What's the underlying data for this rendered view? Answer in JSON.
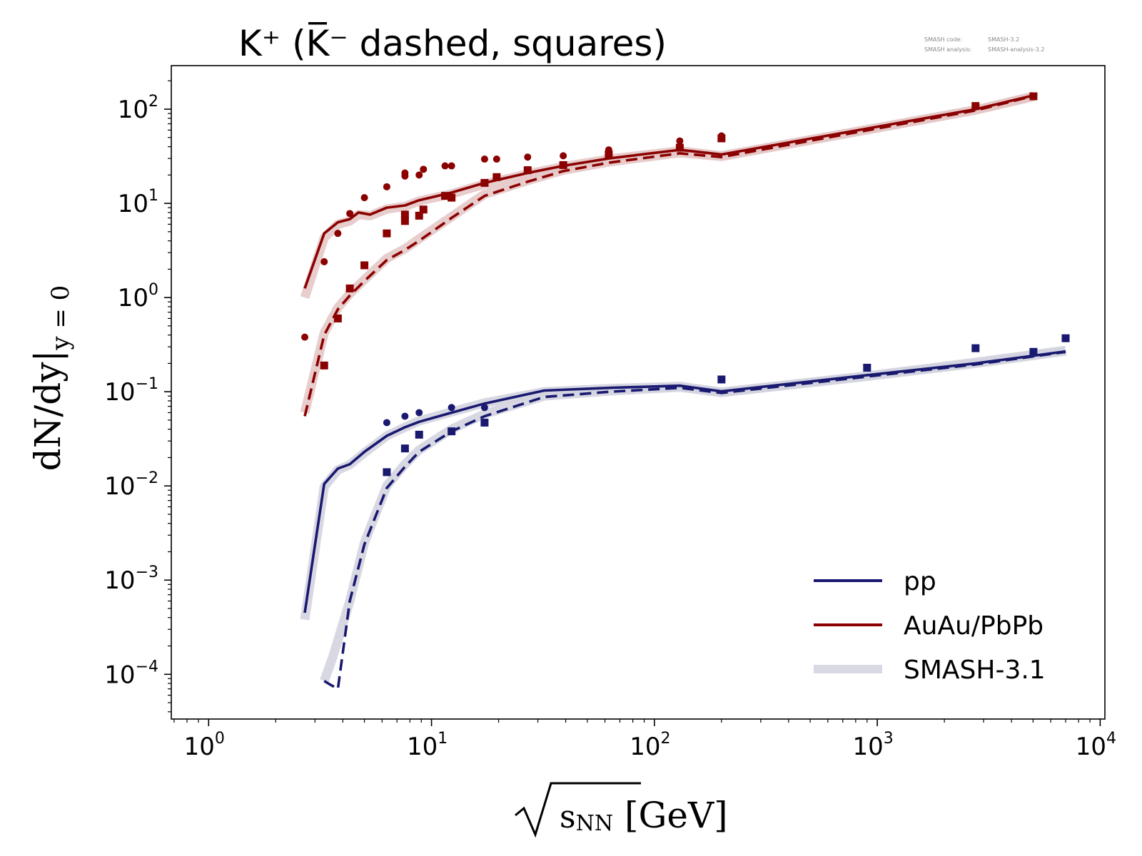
{
  "chart_data": {
    "type": "line",
    "title": "K⁺ (K̅⁻ dashed, squares)",
    "xlabel": "√sNN [GeV]",
    "ylabel": "dN/dy|y=0",
    "xscale": "log",
    "yscale": "log",
    "xlim": [
      0.68,
      10500
    ],
    "ylim": [
      3.35e-05,
      290
    ],
    "grid": false,
    "legend_position": "lower-right",
    "x_ticks": [
      {
        "exp": 0,
        "value": 1
      },
      {
        "exp": 1,
        "value": 10
      },
      {
        "exp": 2,
        "value": 100
      },
      {
        "exp": 3,
        "value": 1000
      },
      {
        "exp": 4,
        "value": 10000
      }
    ],
    "y_ticks": [
      {
        "exp": -4,
        "value": 0.0001
      },
      {
        "exp": -3,
        "value": 0.001
      },
      {
        "exp": -2,
        "value": 0.01
      },
      {
        "exp": -1,
        "value": 0.1
      },
      {
        "exp": 0,
        "value": 1
      },
      {
        "exp": 1,
        "value": 10
      },
      {
        "exp": 2,
        "value": 100
      }
    ],
    "version_note": {
      "line1_label": "SMASH code:",
      "line1_value": "SMASH-3.2",
      "line2_label": "SMASH analysis:",
      "line2_value": "SMASH-analysis-3.2"
    },
    "legend": [
      {
        "label": "pp",
        "color": "#191970",
        "style": "solid"
      },
      {
        "label": "AuAu/PbPb",
        "color": "#8b0000",
        "style": "solid"
      },
      {
        "label": "SMASH-3.1",
        "color": "#d9d9e3",
        "style": "band"
      }
    ],
    "series": [
      {
        "key": "pp_kplus_32",
        "color": "#191970",
        "style": "solid",
        "x": [
          2.7,
          3.3,
          3.8,
          4.3,
          5.0,
          6.3,
          7.6,
          8.8,
          12.3,
          17.3,
          32,
          63,
          130,
          200,
          900,
          2760,
          7000
        ],
        "y": [
          0.00045,
          0.0105,
          0.0153,
          0.017,
          0.023,
          0.034,
          0.042,
          0.048,
          0.06,
          0.075,
          0.103,
          0.11,
          0.116,
          0.101,
          0.15,
          0.2,
          0.268
        ]
      },
      {
        "key": "pp_kminus_32",
        "color": "#191970",
        "style": "dashed",
        "x": [
          3.3,
          3.5,
          3.8,
          4.3,
          5.0,
          6.3,
          7.6,
          8.8,
          12.3,
          17.3,
          32,
          63,
          130,
          200,
          900,
          2760,
          7000
        ],
        "y": [
          8.5e-05,
          7.8e-05,
          7e-05,
          0.0006,
          0.0024,
          0.0095,
          0.016,
          0.023,
          0.038,
          0.055,
          0.088,
          0.1,
          0.11,
          0.097,
          0.145,
          0.195,
          0.265
        ]
      },
      {
        "key": "auau_kplus_32",
        "color": "#8b0000",
        "style": "solid",
        "x": [
          2.7,
          3.3,
          3.8,
          4.3,
          4.7,
          5.3,
          6.3,
          7.6,
          8.8,
          12.3,
          17.3,
          27,
          39,
          62.4,
          130,
          200,
          2760,
          5020
        ],
        "y": [
          1.25,
          4.8,
          6.3,
          6.8,
          8.0,
          7.6,
          9.0,
          9.5,
          10.8,
          13.0,
          16.5,
          21.0,
          25.0,
          30.0,
          37.0,
          33.0,
          100.0,
          140.0
        ]
      },
      {
        "key": "auau_kminus_32",
        "color": "#8b0000",
        "style": "dashed",
        "x": [
          2.7,
          3.3,
          3.8,
          4.3,
          5.0,
          6.3,
          7.6,
          8.8,
          12.3,
          17.3,
          27,
          39,
          62.4,
          130,
          200,
          2760,
          5020
        ],
        "y": [
          0.055,
          0.4,
          0.75,
          1.05,
          1.5,
          2.5,
          3.2,
          4.0,
          7.0,
          12.0,
          17.0,
          22.0,
          27.0,
          34.0,
          31.0,
          97.0,
          138.0
        ]
      }
    ],
    "bands_smash31": [
      {
        "key": "band_pp_kplus",
        "color": "#d4d4e0",
        "x": [
          2.7,
          3.3,
          3.8,
          4.3,
          5.0,
          6.3,
          7.6,
          8.8,
          12.3,
          17.3,
          32,
          63,
          130,
          200,
          900,
          2760,
          7000
        ],
        "y": [
          0.00038,
          0.0098,
          0.0148,
          0.0168,
          0.0225,
          0.034,
          0.042,
          0.049,
          0.061,
          0.076,
          0.1,
          0.108,
          0.114,
          0.099,
          0.147,
          0.205,
          0.275
        ]
      },
      {
        "key": "band_pp_kminus",
        "color": "#d4d4e0",
        "x": [
          3.3,
          3.6,
          3.9,
          4.3,
          5.0,
          6.3,
          7.6,
          8.8,
          12.3,
          17.3,
          32,
          63,
          130,
          200,
          900,
          2760,
          7000
        ],
        "y": [
          8.5e-05,
          0.00015,
          0.00028,
          0.0006,
          0.0025,
          0.01,
          0.017,
          0.024,
          0.04,
          0.058,
          0.09,
          0.102,
          0.112,
          0.098,
          0.146,
          0.2,
          0.27
        ]
      },
      {
        "key": "band_auau_kplus",
        "color": "#e6c8c8",
        "x": [
          2.7,
          3.3,
          3.8,
          4.3,
          4.7,
          5.3,
          6.3,
          7.6,
          8.8,
          12.3,
          17.3,
          27,
          39,
          62.4,
          130,
          200,
          2760,
          5020
        ],
        "y": [
          1.0,
          4.3,
          6.0,
          6.5,
          7.6,
          7.4,
          8.7,
          9.3,
          10.6,
          12.6,
          16.0,
          20.5,
          24.5,
          29.5,
          36.0,
          32.0,
          98.0,
          136.0
        ]
      },
      {
        "key": "band_auau_kminus",
        "color": "#e6c8c8",
        "x": [
          2.7,
          3.3,
          3.8,
          4.3,
          5.0,
          6.3,
          7.6,
          8.8,
          12.3,
          17.3,
          27,
          39,
          62.4,
          130,
          200,
          2760,
          5020
        ],
        "y": [
          0.06,
          0.42,
          0.78,
          1.1,
          1.55,
          2.6,
          3.3,
          4.2,
          7.2,
          12.5,
          17.5,
          22.5,
          27.5,
          34.5,
          31.5,
          98.0,
          137.0
        ]
      }
    ],
    "markers": [
      {
        "key": "pp_kplus_data",
        "shape": "circle",
        "color": "#191970",
        "points": [
          [
            6.3,
            0.047
          ],
          [
            7.6,
            0.055
          ],
          [
            8.8,
            0.06
          ],
          [
            12.3,
            0.068
          ],
          [
            17.3,
            0.068
          ],
          [
            200,
            0.135
          ]
        ]
      },
      {
        "key": "pp_kminus_data",
        "shape": "square",
        "color": "#191970",
        "points": [
          [
            6.3,
            0.014
          ],
          [
            7.6,
            0.025
          ],
          [
            8.8,
            0.035
          ],
          [
            12.3,
            0.038
          ],
          [
            17.3,
            0.047
          ],
          [
            200,
            0.135
          ],
          [
            900,
            0.18
          ],
          [
            2760,
            0.29
          ],
          [
            5020,
            0.265
          ],
          [
            7000,
            0.37
          ]
        ]
      },
      {
        "key": "auau_kplus_data",
        "shape": "circle",
        "color": "#8b0000",
        "points": [
          [
            2.7,
            0.38
          ],
          [
            3.3,
            2.4
          ],
          [
            3.8,
            4.8
          ],
          [
            4.3,
            7.8
          ],
          [
            5.0,
            11.5
          ],
          [
            6.3,
            15.0
          ],
          [
            7.6,
            19.5
          ],
          [
            7.6,
            21.0
          ],
          [
            8.8,
            20.0
          ],
          [
            9.2,
            23.0
          ],
          [
            11.5,
            25.0
          ],
          [
            12.3,
            25.0
          ],
          [
            17.3,
            29.5
          ],
          [
            19.6,
            29.5
          ],
          [
            27,
            31.0
          ],
          [
            39,
            32.0
          ],
          [
            62.4,
            37.0
          ],
          [
            130,
            46.0
          ],
          [
            200,
            52.0
          ]
        ]
      },
      {
        "key": "auau_kminus_data",
        "shape": "square",
        "color": "#8b0000",
        "points": [
          [
            3.3,
            0.19
          ],
          [
            3.8,
            0.6
          ],
          [
            4.3,
            1.25
          ],
          [
            5.0,
            2.2
          ],
          [
            6.3,
            4.8
          ],
          [
            7.6,
            6.5
          ],
          [
            7.6,
            7.6
          ],
          [
            8.8,
            7.4
          ],
          [
            9.2,
            8.6
          ],
          [
            11.5,
            12.0
          ],
          [
            12.3,
            11.5
          ],
          [
            17.3,
            16.5
          ],
          [
            19.6,
            19.0
          ],
          [
            27,
            22.5
          ],
          [
            39,
            25.5
          ],
          [
            62.4,
            33.0
          ],
          [
            130,
            39.0
          ],
          [
            200,
            49.0
          ],
          [
            2760,
            108.0
          ],
          [
            5020,
            137.0
          ]
        ]
      }
    ]
  }
}
